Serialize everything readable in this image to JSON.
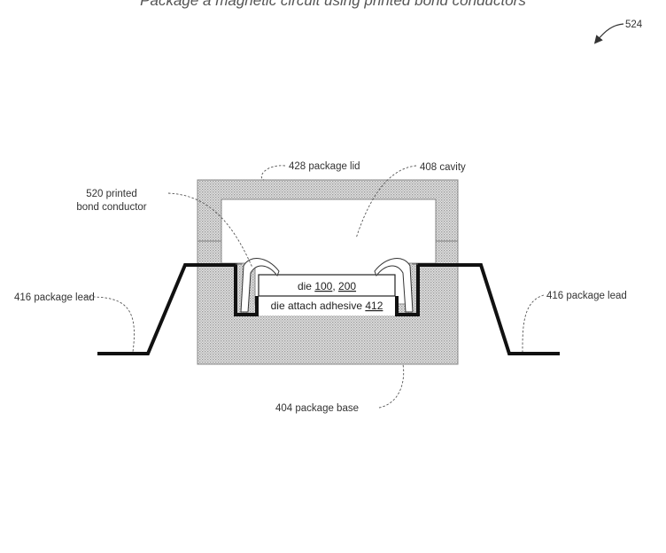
{
  "figure": {
    "title": "Package a magnetic circuit using printed bond conductors",
    "reference": "524"
  },
  "labels": {
    "lid": "428 package lid",
    "cavity": "408 cavity",
    "bond_line1": "520 printed",
    "bond_line2": "bond conductor",
    "lead_left": "416 package lead",
    "lead_right": "416 package lead",
    "base": "404 package base",
    "die_prefix": "die ",
    "die_ref1": "100",
    "die_sep": ", ",
    "die_ref2": "200",
    "adhesive_prefix": "die attach adhesive ",
    "adhesive_ref": "412"
  },
  "colors": {
    "package_fill": "#d6d6d6",
    "lead": "#111111",
    "line": "#555555"
  }
}
